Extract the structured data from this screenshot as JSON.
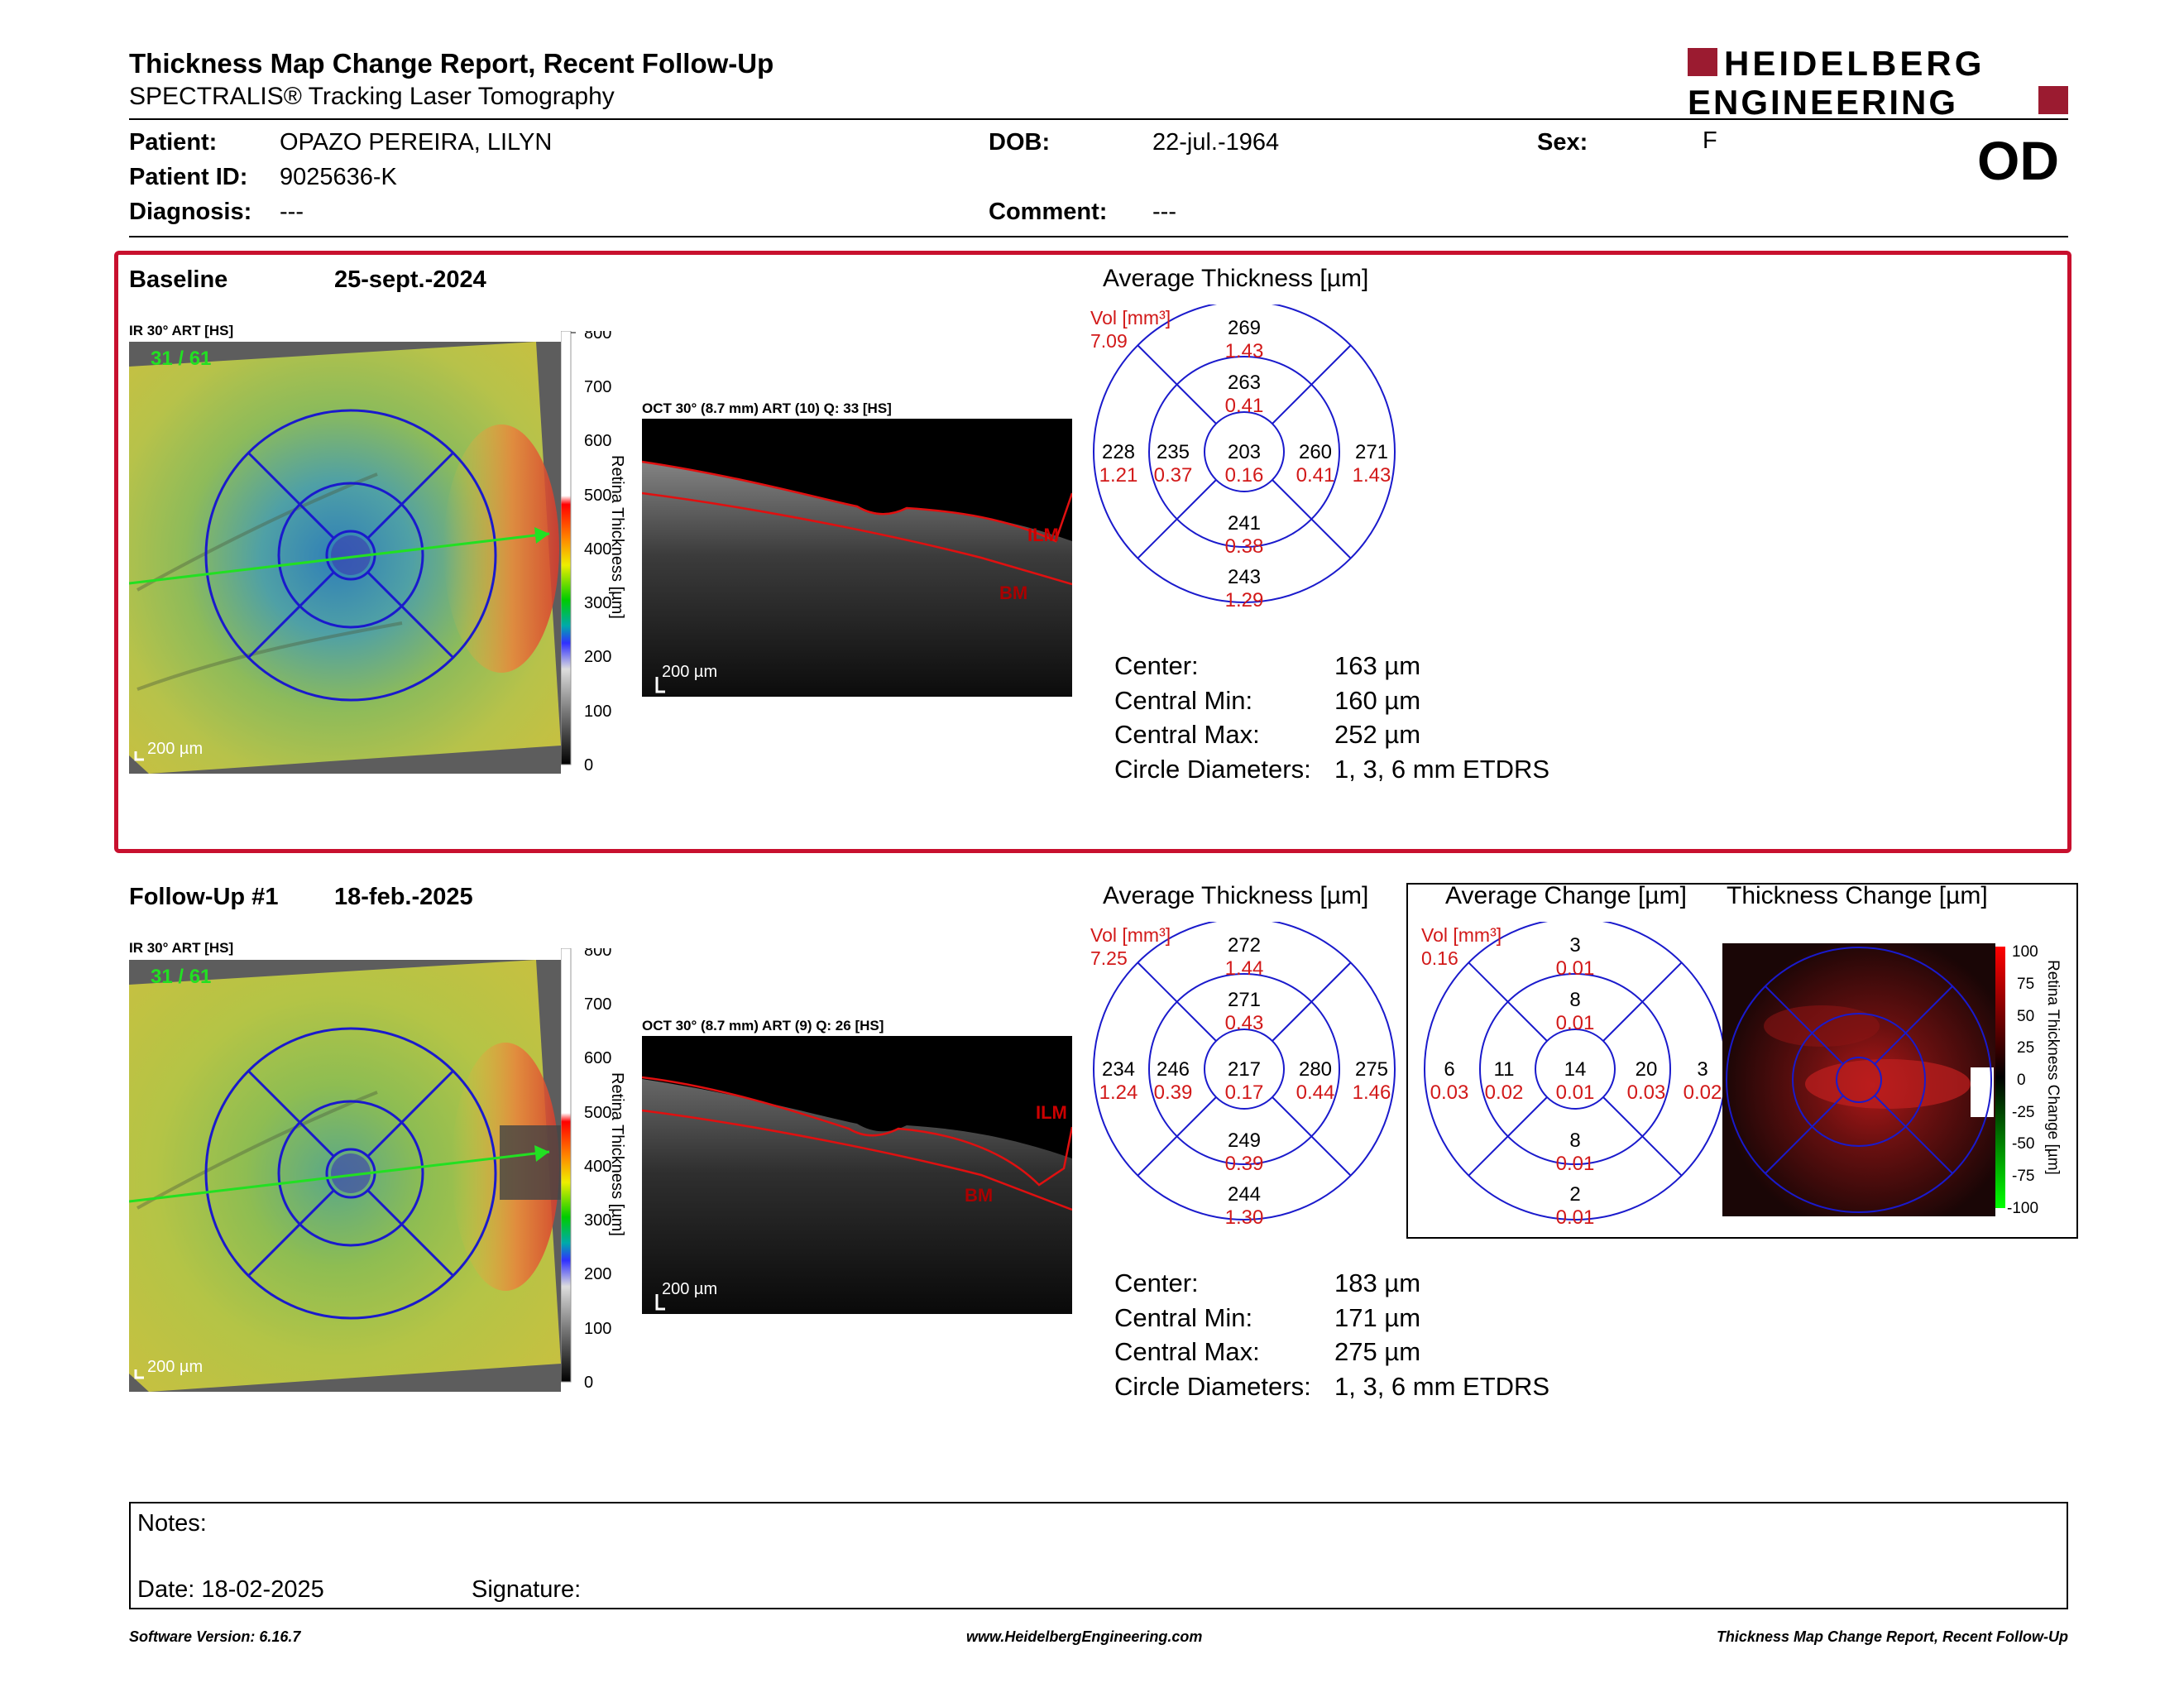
{
  "header": {
    "title": "Thickness Map Change Report, Recent Follow-Up",
    "subtitle": "SPECTRALIS® Tracking Laser Tomography",
    "logo_line1": "HEIDELBERG",
    "logo_line2": "ENGINEERING"
  },
  "patient": {
    "patient_label": "Patient:",
    "patient_value": "OPAZO PEREIRA, LILYN",
    "id_label": "Patient ID:",
    "id_value": "9025636-K",
    "diagnosis_label": "Diagnosis:",
    "diagnosis_value": "---",
    "dob_label": "DOB:",
    "dob_value": "22-jul.-1964",
    "comment_label": "Comment:",
    "comment_value": "---",
    "sex_label": "Sex:",
    "sex_value": "F",
    "eye": "OD"
  },
  "baseline": {
    "label": "Baseline",
    "date": "25-sept.-2024",
    "ir_label": "IR 30° ART [HS]",
    "ir_counter": "31 / 61",
    "scale_label": "200 µm",
    "colorbar_ticks": [
      "800",
      "700",
      "600",
      "500",
      "400",
      "300",
      "200",
      "100",
      "0"
    ],
    "colorbar_title": "Retina Thickness [µm]",
    "oct_label": "OCT 30° (8.7 mm) ART (10) Q: 33 [HS]",
    "oct_scale": "200 µm",
    "oct_ilm": "ILM",
    "oct_bm": "BM",
    "avg_title": "Average Thickness [µm]",
    "vol_label": "Vol [mm³]",
    "vol_value": "7.09",
    "grid": {
      "center": [
        "203",
        "0.16"
      ],
      "inner_sup": [
        "263",
        "0.41"
      ],
      "inner_inf": [
        "241",
        "0.38"
      ],
      "inner_left": [
        "235",
        "0.37"
      ],
      "inner_right": [
        "260",
        "0.41"
      ],
      "outer_sup": [
        "269",
        "1.43"
      ],
      "outer_inf": [
        "243",
        "1.29"
      ],
      "outer_left": [
        "228",
        "1.21"
      ],
      "outer_right": [
        "271",
        "1.43"
      ]
    },
    "stats": [
      {
        "label": "Center:",
        "value": "163 µm"
      },
      {
        "label": "Central Min:",
        "value": "160 µm"
      },
      {
        "label": "Central Max:",
        "value": "252 µm"
      },
      {
        "label": "Circle Diameters:",
        "value": "1, 3, 6 mm ETDRS"
      }
    ]
  },
  "followup": {
    "label": "Follow-Up #1",
    "date": "18-feb.-2025",
    "ir_label": "IR 30° ART [HS]",
    "ir_counter": "31 / 61",
    "scale_label": "200 µm",
    "colorbar_ticks": [
      "800",
      "700",
      "600",
      "500",
      "400",
      "300",
      "200",
      "100",
      "0"
    ],
    "colorbar_title": "Retina Thickness [µm]",
    "oct_label": "OCT 30° (8.7 mm) ART (9) Q: 26 [HS]",
    "oct_scale": "200 µm",
    "oct_ilm": "ILM",
    "oct_bm": "BM",
    "avg_title": "Average Thickness [µm]",
    "vol_label": "Vol [mm³]",
    "vol_value": "7.25",
    "grid": {
      "center": [
        "217",
        "0.17"
      ],
      "inner_sup": [
        "271",
        "0.43"
      ],
      "inner_inf": [
        "249",
        "0.39"
      ],
      "inner_left": [
        "246",
        "0.39"
      ],
      "inner_right": [
        "280",
        "0.44"
      ],
      "outer_sup": [
        "272",
        "1.44"
      ],
      "outer_inf": [
        "244",
        "1.30"
      ],
      "outer_left": [
        "234",
        "1.24"
      ],
      "outer_right": [
        "275",
        "1.46"
      ]
    },
    "stats": [
      {
        "label": "Center:",
        "value": "183 µm"
      },
      {
        "label": "Central Min:",
        "value": "171 µm"
      },
      {
        "label": "Central Max:",
        "value": "275 µm"
      },
      {
        "label": "Circle Diameters:",
        "value": "1, 3, 6 mm ETDRS"
      }
    ],
    "change_title": "Average Change [µm]",
    "change_vol_label": "Vol [mm³]",
    "change_vol_value": "0.16",
    "change_grid": {
      "center": [
        "14",
        "0.01"
      ],
      "inner_sup": [
        "8",
        "0.01"
      ],
      "inner_inf": [
        "8",
        "0.01"
      ],
      "inner_left": [
        "11",
        "0.02"
      ],
      "inner_right": [
        "20",
        "0.03"
      ],
      "outer_sup": [
        "3",
        "0.01"
      ],
      "outer_inf": [
        "2",
        "0.01"
      ],
      "outer_left": [
        "6",
        "0.03"
      ],
      "outer_right": [
        "3",
        "0.02"
      ]
    },
    "thickness_change_title": "Thickness Change [µm]",
    "change_ticks": [
      "100",
      "75",
      "50",
      "25",
      "0",
      "-25",
      "-50",
      "-75",
      "-100"
    ],
    "change_colorbar_title": "Retina Thickness Change [µm]"
  },
  "notes": {
    "notes_label": "Notes:",
    "date_label": "Date: 18-02-2025",
    "signature_label": "Signature:"
  },
  "footer": {
    "version": "Software Version: 6.16.7",
    "website": "www.HeidelbergEngineering.com",
    "report_name": "Thickness Map Change Report, Recent Follow-Up"
  },
  "colors": {
    "accent_red": "#c8102e",
    "logo_red": "#9b1b30",
    "grid_blue": "#1a1acc",
    "vol_red": "#d21919"
  }
}
